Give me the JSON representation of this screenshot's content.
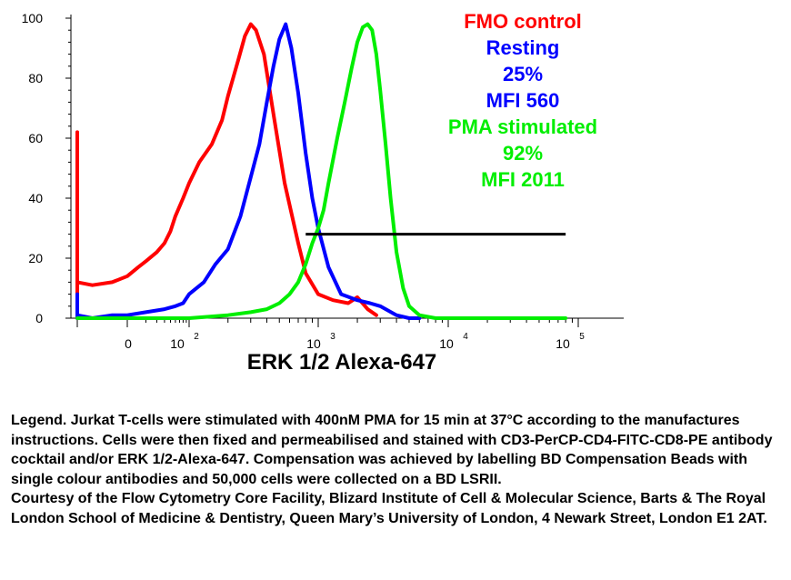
{
  "chart_data": {
    "type": "line",
    "title": "",
    "xlabel": "ERK 1/2 Alexa-647",
    "ylabel": "",
    "x_scale": "log",
    "ylim": [
      0,
      100
    ],
    "y_ticks": [
      "0",
      "20",
      "40",
      "60",
      "80",
      "100"
    ],
    "x_ticks": [
      {
        "base": "0",
        "exp": ""
      },
      {
        "base": "10",
        "exp": "2"
      },
      {
        "base": "10",
        "exp": "3"
      },
      {
        "base": "10",
        "exp": "4"
      },
      {
        "base": "10",
        "exp": "5"
      }
    ],
    "gate": {
      "from": 800,
      "to": 80000,
      "y": 28
    },
    "annotations": [
      {
        "text": "FMO control",
        "color": "#ff0000"
      },
      {
        "text": "Resting",
        "color": "#0000ff"
      },
      {
        "text": "25%",
        "color": "#0000ff"
      },
      {
        "text": "MFI 560",
        "color": "#0000ff"
      },
      {
        "text": "PMA stimulated",
        "color": "#00ee00"
      },
      {
        "text": "92%",
        "color": "#00ee00"
      },
      {
        "text": "MFI 2011",
        "color": "#00ee00"
      }
    ],
    "series": [
      {
        "color": "#ff0000",
        "x": [
          1,
          1,
          1,
          2,
          5,
          10,
          15,
          20,
          30,
          40,
          50,
          60,
          80,
          100,
          120,
          150,
          180,
          200,
          240,
          270,
          300,
          330,
          380,
          450,
          550,
          700,
          800,
          1000,
          1300,
          1700,
          2000,
          2400,
          2800
        ],
        "y": [
          62,
          5,
          12,
          11,
          12,
          14,
          17,
          19,
          22,
          25,
          29,
          34,
          40,
          45,
          52,
          58,
          66,
          74,
          86,
          94,
          98,
          96,
          88,
          68,
          45,
          25,
          15,
          8,
          6,
          5,
          7,
          3,
          1
        ]
      },
      {
        "color": "#0000ff",
        "x": [
          1,
          1,
          1,
          2,
          5,
          10,
          20,
          40,
          60,
          80,
          100,
          130,
          160,
          200,
          250,
          300,
          350,
          400,
          450,
          500,
          560,
          620,
          700,
          800,
          900,
          1000,
          1200,
          1500,
          2000,
          2500,
          3000,
          4000,
          5000,
          6000
        ],
        "y": [
          8,
          0,
          1,
          0,
          1,
          1,
          2,
          3,
          4,
          5,
          8,
          12,
          18,
          23,
          34,
          47,
          58,
          72,
          84,
          93,
          98,
          90,
          75,
          55,
          40,
          30,
          17,
          8,
          6,
          5,
          4,
          1,
          0,
          0
        ]
      },
      {
        "color": "#00ee00",
        "x": [
          1,
          10,
          50,
          100,
          200,
          300,
          400,
          500,
          600,
          700,
          800,
          900,
          1000,
          1100,
          1200,
          1400,
          1600,
          1800,
          2000,
          2200,
          2400,
          2600,
          2800,
          3000,
          3300,
          3600,
          4000,
          4500,
          5000,
          6000,
          8000,
          10000,
          30000,
          80000
        ],
        "y": [
          0,
          0,
          0,
          0,
          1,
          2,
          3,
          5,
          8,
          12,
          18,
          25,
          30,
          36,
          45,
          60,
          72,
          83,
          92,
          97,
          98,
          96,
          88,
          76,
          58,
          40,
          22,
          10,
          4,
          1,
          0,
          0,
          0,
          0
        ]
      }
    ]
  },
  "legend": {
    "paragraph1": "Legend. Jurkat T-cells were stimulated with 400nM PMA for 15 min at 37°C according to the manufactures instructions. Cells were then fixed and permeabilised and stained with CD3-PerCP-CD4-FITC-CD8-PE antibody cocktail and/or ERK 1/2-Alexa-647. Compensation was achieved by labelling BD Compensation Beads with single colour antibodies and 50,000 cells were collected on a BD LSRII.",
    "paragraph2": "Courtesy of the Flow Cytometry Core Facility, Blizard Institute of Cell & Molecular Science, Barts & The Royal London School of Medicine & Dentistry, Queen Mary’s University of London, 4 Newark Street, London E1 2AT."
  }
}
